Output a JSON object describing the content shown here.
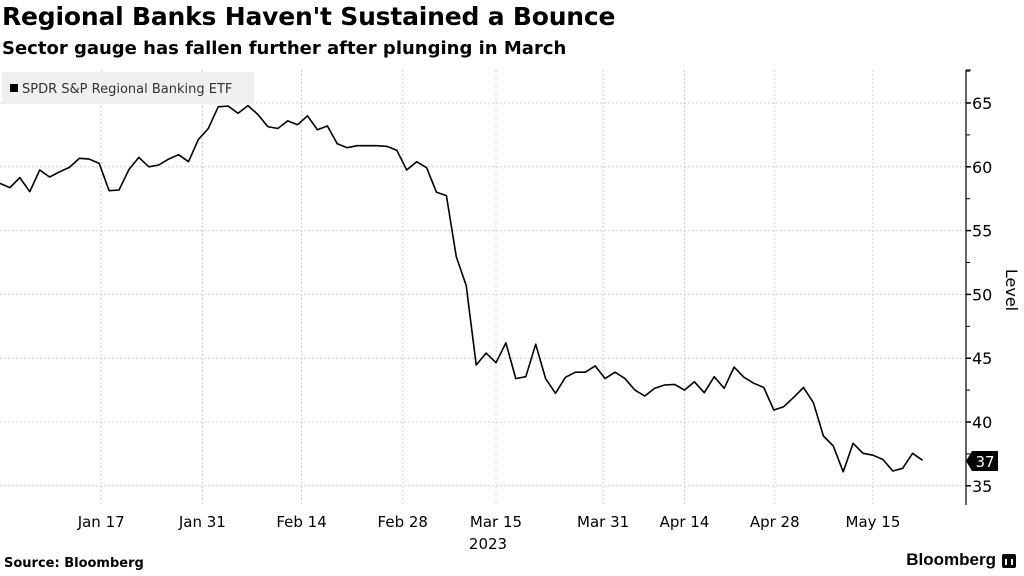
{
  "chart_data": {
    "type": "line",
    "title": "Regional Banks Haven't Sustained a Bounce",
    "subtitle": "Sector gauge has fallen further after plunging in March",
    "legend": {
      "label": "SPDR S&P Regional Banking ETF",
      "placement": "top-left"
    },
    "ylabel": "Level",
    "ylim": [
      35,
      67
    ],
    "yticks": [
      35,
      40,
      45,
      50,
      55,
      60,
      65
    ],
    "ytick_labels": [
      "35",
      "40",
      "45",
      "50",
      "55",
      "60",
      "65"
    ],
    "grid": true,
    "xlabel_year": "2023",
    "xticks": [
      {
        "label": "Jan 17",
        "index": 10.2
      },
      {
        "label": "Jan 31",
        "index": 20.4
      },
      {
        "label": "Feb 14",
        "index": 30.4
      },
      {
        "label": "Feb 28",
        "index": 40.6
      },
      {
        "label": "Mar 15",
        "index": 50
      },
      {
        "label": "Mar 31",
        "index": 60.8
      },
      {
        "label": "Apr 14",
        "index": 69
      },
      {
        "label": "Apr 28",
        "index": 78.1
      },
      {
        "label": "May 15",
        "index": 88
      }
    ],
    "series": [
      {
        "name": "SPDR S&P Regional Banking ETF",
        "color": "#000000",
        "values": [
          58.7,
          58.36,
          59.15,
          58.05,
          59.75,
          59.2,
          59.6,
          59.95,
          60.67,
          60.6,
          60.27,
          58.13,
          58.18,
          59.8,
          60.74,
          60.0,
          60.14,
          60.6,
          60.95,
          60.4,
          62.15,
          63.0,
          64.7,
          64.76,
          64.19,
          64.8,
          64.1,
          63.15,
          63.0,
          63.6,
          63.3,
          64.0,
          62.9,
          63.2,
          61.8,
          61.5,
          61.65,
          61.65,
          61.65,
          61.6,
          61.3,
          59.75,
          60.4,
          59.93,
          58.0,
          57.74,
          52.95,
          50.7,
          44.47,
          45.4,
          44.65,
          46.2,
          43.4,
          43.55,
          46.1,
          43.4,
          42.25,
          43.5,
          43.9,
          43.9,
          44.4,
          43.4,
          43.9,
          43.4,
          42.5,
          42.04,
          42.64,
          42.9,
          42.95,
          42.5,
          43.15,
          42.3,
          43.55,
          42.64,
          44.3,
          43.5,
          43.03,
          42.7,
          40.94,
          41.2,
          41.93,
          42.7,
          41.51,
          38.9,
          38.12,
          36.1,
          38.33,
          37.55,
          37.4,
          37.06,
          36.16,
          36.37,
          37.55,
          37.0
        ]
      }
    ],
    "last_value_label": "37"
  },
  "footer": {
    "source": "Source: Bloomberg",
    "brand": "Bloomberg"
  }
}
